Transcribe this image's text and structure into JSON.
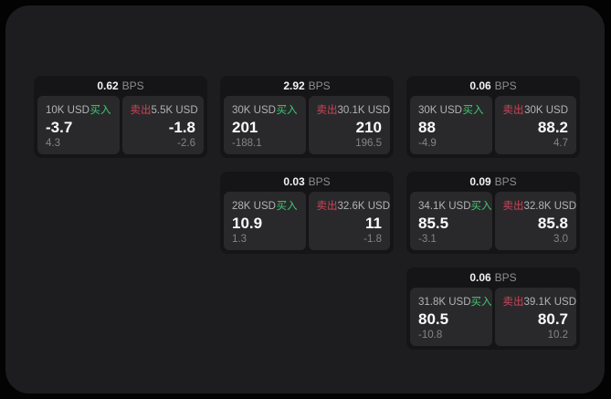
{
  "labels": {
    "bps_unit": "BPS",
    "buy": "买入",
    "sell": "卖出"
  },
  "colors": {
    "page_background": "#030303",
    "surface": "#1d1d1f",
    "card_background": "#151517",
    "panel_background": "#29292b",
    "buy_green": "#42c878",
    "sell_red": "#ce4459",
    "primary_text": "#fafafa",
    "muted_text": "#848484"
  },
  "cards": [
    {
      "bps": "0.62",
      "buy": {
        "size": "10K USD",
        "price": "-3.7",
        "sub": "4.3"
      },
      "sell": {
        "size": "5.5K USD",
        "price": "-1.8",
        "sub": "-2.6"
      }
    },
    {
      "bps": "2.92",
      "buy": {
        "size": "30K USD",
        "price": "201",
        "sub": "-188.1"
      },
      "sell": {
        "size": "30.1K USD",
        "price": "210",
        "sub": "196.5"
      }
    },
    {
      "bps": "0.06",
      "buy": {
        "size": "30K USD",
        "price": "88",
        "sub": "-4.9"
      },
      "sell": {
        "size": "30K USD",
        "price": "88.2",
        "sub": "4.7"
      }
    },
    {
      "bps": "0.03",
      "buy": {
        "size": "28K USD",
        "price": "10.9",
        "sub": "1.3"
      },
      "sell": {
        "size": "32.6K USD",
        "price": "11",
        "sub": "-1.8"
      }
    },
    {
      "bps": "0.09",
      "buy": {
        "size": "34.1K USD",
        "price": "85.5",
        "sub": "-3.1"
      },
      "sell": {
        "size": "32.8K USD",
        "price": "85.8",
        "sub": "3.0"
      }
    },
    {
      "bps": "0.06",
      "buy": {
        "size": "31.8K USD",
        "price": "80.5",
        "sub": "-10.8"
      },
      "sell": {
        "size": "39.1K USD",
        "price": "80.7",
        "sub": "10.2"
      }
    }
  ]
}
